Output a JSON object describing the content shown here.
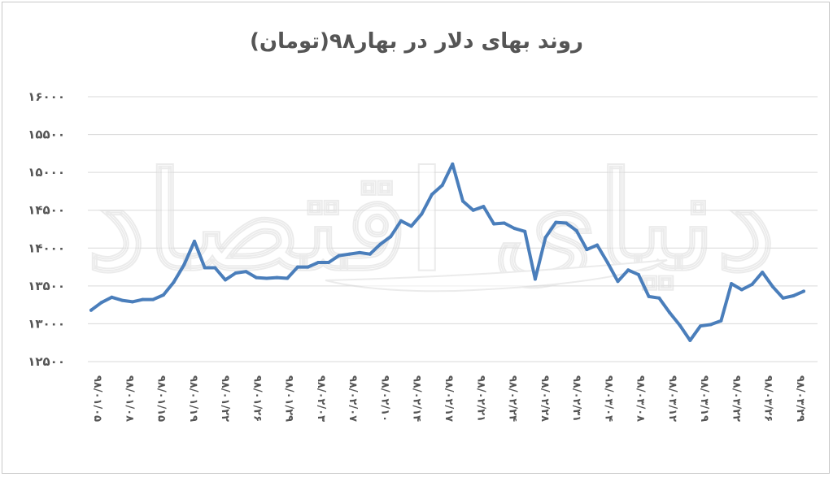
{
  "chart_data": {
    "type": "line",
    "title": "روند بهای دلار در بهار۹۸(تومان)",
    "xlabel": "",
    "ylabel": "",
    "ylim": [
      12500,
      16000
    ],
    "yticks": [
      "۱۲۵۰۰",
      "۱۳۰۰۰",
      "۱۳۵۰۰",
      "۱۴۰۰۰",
      "۱۴۵۰۰",
      "۱۵۰۰۰",
      "۱۵۵۰۰",
      "۱۶۰۰۰"
    ],
    "ytick_values": [
      12500,
      13000,
      13500,
      14000,
      14500,
      15000,
      15500,
      16000
    ],
    "xtick_labels": [
      "۹۸/۰۱/۰۵",
      "۹۸/۰۱/۰۸",
      "۹۸/۰۱/۱۵",
      "۹۸/۰۱/۱۹",
      "۹۸/۰۱/۲۲",
      "۹۸/۰۱/۲۶",
      "۹۸/۰۱/۲۹",
      "۹۸/۰۲/۰۳",
      "۹۸/۰۲/۰۷",
      "۹۸/۰۲/۱۰",
      "۹۸/۰۲/۱۴",
      "۹۸/۰۲/۱۷",
      "۹۸/۰۲/۲۱",
      "۹۸/۰۲/۲۴",
      "۹۸/۰۲/۲۸",
      "۹۸/۰۲/۳۱",
      "۹۸/۰۳/۰۴",
      "۹۸/۰۳/۰۸",
      "۹۸/۰۳/۱۲",
      "۹۸/۰۳/۱۹",
      "۹۸/۰۳/۲۲",
      "۹۸/۰۳/۲۶",
      "۹۸/۰۳/۲۹"
    ],
    "grid": true,
    "legend": "none",
    "line_color": "#4a7ebb",
    "values": [
      13180,
      13280,
      13350,
      13310,
      13290,
      13320,
      13320,
      13380,
      13550,
      13780,
      14090,
      13740,
      13740,
      13580,
      13670,
      13690,
      13610,
      13600,
      13610,
      13600,
      13750,
      13750,
      13810,
      13810,
      13900,
      13920,
      13940,
      13920,
      14050,
      14150,
      14360,
      14290,
      14450,
      14710,
      14830,
      15110,
      14620,
      14500,
      14550,
      14320,
      14330,
      14260,
      14220,
      13590,
      14140,
      14340,
      14330,
      14230,
      13980,
      14040,
      13810,
      13560,
      13710,
      13650,
      13360,
      13340,
      13150,
      12980,
      12780,
      12970,
      12990,
      13040,
      13530,
      13450,
      13520,
      13680,
      13490,
      13340,
      13370,
      13430
    ]
  },
  "watermark": {
    "text": "دنیای اقتصاد"
  }
}
